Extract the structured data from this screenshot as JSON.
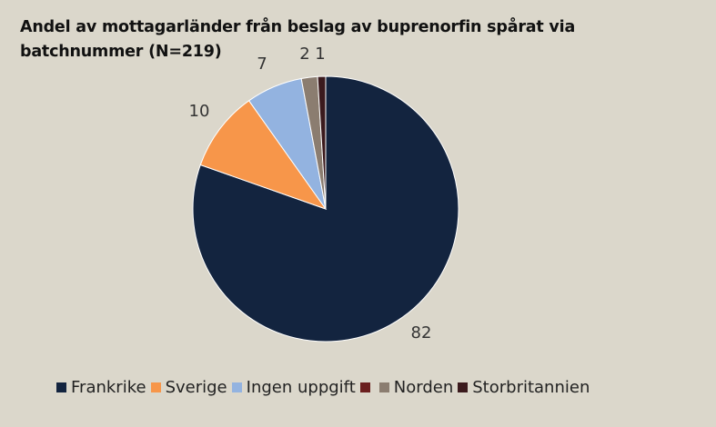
{
  "chart_data": {
    "type": "pie",
    "title": "Andel av mottagarländer från beslag av buprenorfin spårat via batchnummer (N=219)",
    "categories": [
      "Frankrike",
      "Sverige",
      "Ingen uppgift",
      "",
      "Norden",
      "Storbritannien"
    ],
    "values": [
      82,
      10,
      7,
      0,
      2,
      1
    ],
    "data_labels": [
      "82",
      "10",
      "7",
      "",
      "2",
      "1"
    ],
    "colors": [
      "#13243f",
      "#f7964a",
      "#93b3e0",
      "#6b1f1f",
      "#8b7d70",
      "#3b1a1d"
    ],
    "legend_position": "bottom"
  }
}
